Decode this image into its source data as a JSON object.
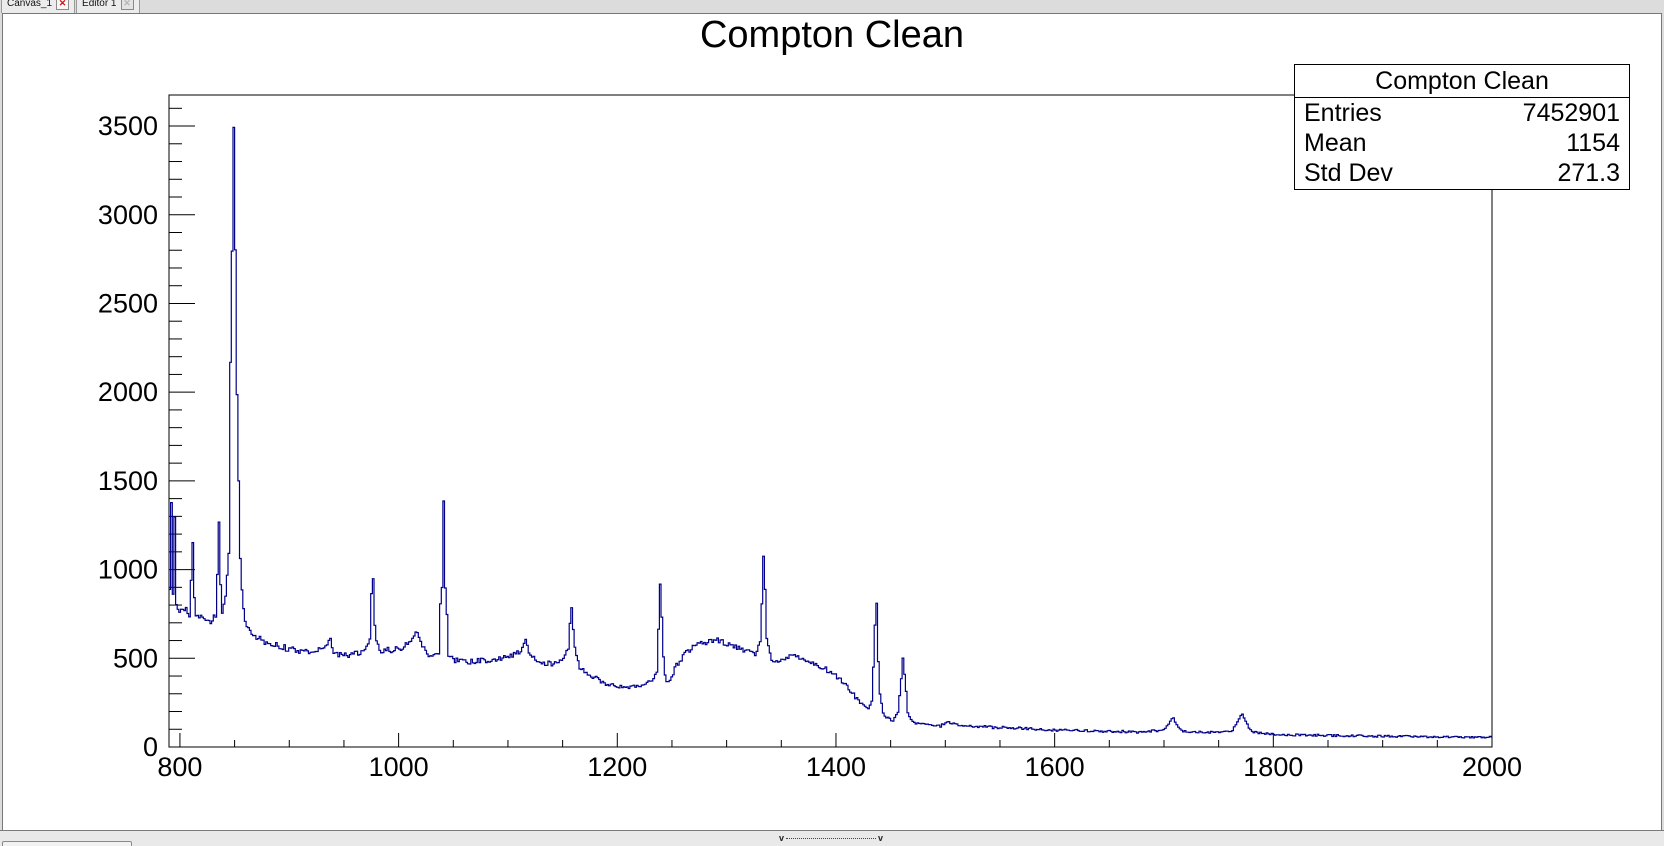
{
  "tab_bar": {
    "tabs": [
      {
        "label": "Canvas_1",
        "close_glyph": "✕",
        "close_color": "#cc1111",
        "state": "active"
      },
      {
        "label": "Editor 1",
        "close_glyph": "✕",
        "close_color": "#b5b5b5",
        "state": "disabled-close"
      }
    ]
  },
  "stats_box": {
    "title": "Compton Clean",
    "rows": [
      {
        "label": "Entries",
        "value": "7452901"
      },
      {
        "label": "Mean",
        "value": "1154"
      },
      {
        "label": "Std Dev",
        "value": "271.3"
      }
    ]
  },
  "splitter": {
    "left_glyph": "v",
    "right_glyph": "v"
  },
  "chart_data": {
    "type": "line",
    "subtype": "step-histogram",
    "title": "Compton Clean",
    "xlabel": "",
    "ylabel": "",
    "x_range": [
      790,
      2000
    ],
    "y_range": [
      0,
      3675
    ],
    "x_major_ticks": [
      800,
      1000,
      1200,
      1400,
      1600,
      1800,
      2000
    ],
    "x_minor_step": 50,
    "y_major_ticks": [
      0,
      500,
      1000,
      1500,
      2000,
      2500,
      3000,
      3500
    ],
    "y_minor_step": 100,
    "grid": false,
    "legend_position": "none",
    "line_color": "#00008b",
    "axis_color": "#000000",
    "bin_width": 1.5,
    "noise_seed": 123456789,
    "anchors": [
      [
        790,
        900,
        30
      ],
      [
        791.5,
        1370,
        10
      ],
      [
        793,
        860,
        30
      ],
      [
        794.5,
        1300,
        10
      ],
      [
        796,
        800,
        30
      ],
      [
        800,
        770,
        25
      ],
      [
        805,
        790,
        25
      ],
      [
        809,
        740,
        20
      ],
      [
        811.5,
        1150,
        5
      ],
      [
        814,
        720,
        20
      ],
      [
        820,
        730,
        20
      ],
      [
        828,
        700,
        20
      ],
      [
        833,
        740,
        20
      ],
      [
        835.7,
        1270,
        5
      ],
      [
        838,
        750,
        20
      ],
      [
        842,
        850,
        20
      ],
      [
        845,
        1100,
        10
      ],
      [
        847,
        2800,
        5
      ],
      [
        849,
        3490,
        5
      ],
      [
        851,
        2800,
        5
      ],
      [
        853,
        1500,
        10
      ],
      [
        856,
        900,
        15
      ],
      [
        860,
        700,
        15
      ],
      [
        865,
        640,
        15
      ],
      [
        875,
        600,
        18
      ],
      [
        890,
        570,
        18
      ],
      [
        905,
        545,
        18
      ],
      [
        920,
        540,
        18
      ],
      [
        933,
        555,
        18
      ],
      [
        937,
        620,
        10
      ],
      [
        941,
        530,
        15
      ],
      [
        950,
        515,
        15
      ],
      [
        960,
        525,
        15
      ],
      [
        968,
        540,
        15
      ],
      [
        973,
        600,
        10
      ],
      [
        976,
        950,
        5
      ],
      [
        979,
        600,
        10
      ],
      [
        983,
        545,
        15
      ],
      [
        995,
        550,
        18
      ],
      [
        1005,
        560,
        18
      ],
      [
        1013,
        620,
        12
      ],
      [
        1017,
        650,
        10
      ],
      [
        1022,
        560,
        15
      ],
      [
        1030,
        505,
        15
      ],
      [
        1036,
        520,
        12
      ],
      [
        1039,
        900,
        5
      ],
      [
        1041,
        1383,
        5
      ],
      [
        1043,
        900,
        5
      ],
      [
        1046,
        520,
        12
      ],
      [
        1052,
        490,
        15
      ],
      [
        1065,
        480,
        15
      ],
      [
        1080,
        490,
        15
      ],
      [
        1095,
        500,
        15
      ],
      [
        1105,
        520,
        15
      ],
      [
        1112,
        540,
        12
      ],
      [
        1116,
        610,
        8
      ],
      [
        1120,
        520,
        12
      ],
      [
        1128,
        480,
        15
      ],
      [
        1140,
        470,
        15
      ],
      [
        1150,
        500,
        12
      ],
      [
        1155,
        560,
        10
      ],
      [
        1158,
        790,
        5
      ],
      [
        1161,
        560,
        10
      ],
      [
        1166,
        450,
        12
      ],
      [
        1172,
        420,
        12
      ],
      [
        1180,
        390,
        12
      ],
      [
        1190,
        355,
        12
      ],
      [
        1205,
        340,
        12
      ],
      [
        1220,
        345,
        12
      ],
      [
        1230,
        365,
        12
      ],
      [
        1236,
        420,
        10
      ],
      [
        1239.5,
        920,
        5
      ],
      [
        1243,
        400,
        10
      ],
      [
        1247,
        360,
        12
      ],
      [
        1255,
        470,
        15
      ],
      [
        1265,
        545,
        15
      ],
      [
        1275,
        580,
        15
      ],
      [
        1288,
        605,
        15
      ],
      [
        1298,
        590,
        15
      ],
      [
        1308,
        565,
        15
      ],
      [
        1318,
        540,
        15
      ],
      [
        1326,
        520,
        12
      ],
      [
        1331,
        600,
        10
      ],
      [
        1334,
        1080,
        5
      ],
      [
        1337,
        620,
        10
      ],
      [
        1341,
        480,
        12
      ],
      [
        1350,
        495,
        12
      ],
      [
        1360,
        515,
        12
      ],
      [
        1370,
        500,
        12
      ],
      [
        1380,
        470,
        12
      ],
      [
        1390,
        440,
        12
      ],
      [
        1398,
        410,
        12
      ],
      [
        1406,
        370,
        12
      ],
      [
        1414,
        310,
        12
      ],
      [
        1422,
        250,
        10
      ],
      [
        1429,
        210,
        10
      ],
      [
        1433,
        260,
        8
      ],
      [
        1436.5,
        810,
        5
      ],
      [
        1440,
        300,
        8
      ],
      [
        1444,
        170,
        8
      ],
      [
        1452,
        150,
        8
      ],
      [
        1457,
        200,
        8
      ],
      [
        1461.5,
        500,
        5
      ],
      [
        1466,
        190,
        8
      ],
      [
        1470,
        140,
        8
      ],
      [
        1480,
        125,
        8
      ],
      [
        1495,
        120,
        8
      ],
      [
        1502,
        138,
        8
      ],
      [
        1512,
        120,
        8
      ],
      [
        1530,
        115,
        8
      ],
      [
        1560,
        108,
        8
      ],
      [
        1600,
        95,
        7
      ],
      [
        1640,
        90,
        7
      ],
      [
        1675,
        85,
        7
      ],
      [
        1700,
        95,
        6
      ],
      [
        1708,
        165,
        4
      ],
      [
        1716,
        90,
        6
      ],
      [
        1740,
        82,
        6
      ],
      [
        1762,
        90,
        6
      ],
      [
        1771,
        185,
        4
      ],
      [
        1780,
        85,
        6
      ],
      [
        1800,
        70,
        6
      ],
      [
        1840,
        66,
        6
      ],
      [
        1880,
        62,
        6
      ],
      [
        1920,
        60,
        6
      ],
      [
        1960,
        57,
        5
      ],
      [
        2000,
        55,
        5
      ]
    ]
  }
}
